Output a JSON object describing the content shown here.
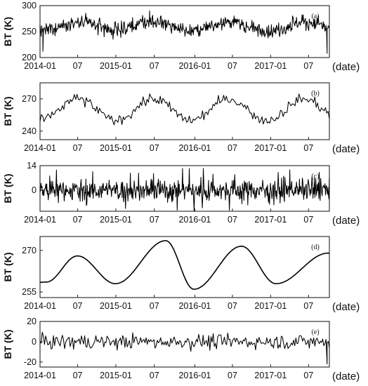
{
  "chart_data": [
    {
      "type": "line",
      "panel_tag": "(a)",
      "ylabel": "BT (K)",
      "xlabel": "(date)",
      "x_ticks": [
        "2014-01",
        "07",
        "2015-01",
        "07",
        "2016-01",
        "07",
        "2017-01",
        "07"
      ],
      "y_ticks": [
        "200",
        "250",
        "300"
      ],
      "ylim": [
        200,
        300
      ],
      "xlim": [
        "2014-01-01",
        "2017-10-31"
      ],
      "series": [
        {
          "daily": true,
          "envelope_top": 275,
          "envelope_bottom": 235,
          "seasonal_peak_months": [
            "2014-07",
            "2015-07",
            "2016-07",
            "2017-07"
          ],
          "extremes": [
            {
              "date": "2014-01-15",
              "value": 212
            },
            {
              "date": "2015-06-15",
              "value": 290
            },
            {
              "date": "2017-10-20",
              "value": 208
            }
          ]
        }
      ]
    },
    {
      "type": "line",
      "panel_tag": "(b)",
      "ylabel": "BT (K)",
      "xlabel": "(date)",
      "x_ticks": [
        "2014-01",
        "07",
        "2015-01",
        "07",
        "2016-01",
        "07",
        "2017-01",
        "07"
      ],
      "y_ticks": [
        "240",
        "270"
      ],
      "ylim": [
        232,
        285
      ],
      "xlim": [
        "2014-01-01",
        "2017-10-31"
      ],
      "series": [
        {
          "weekly_mean": true,
          "range": [
            239,
            280
          ],
          "seasonal_peak_months": [
            "2014-07",
            "2015-07",
            "2016-08",
            "2017-08"
          ],
          "seasonal_trough_months": [
            "2015-01",
            "2016-01",
            "2017-01"
          ]
        }
      ]
    },
    {
      "type": "line",
      "panel_tag": "(c)",
      "ylabel": "BT (K)",
      "xlabel": "(date)",
      "x_ticks": [
        "2014-01",
        "07",
        "2015-01",
        "07",
        "2016-01",
        "07",
        "2017-01",
        "07"
      ],
      "y_ticks": [
        "0",
        "14"
      ],
      "ylim": [
        -12,
        14
      ],
      "xlim": [
        "2014-01-01",
        "2017-10-31"
      ],
      "series": [
        {
          "high_frequency_residual": true,
          "typical_amplitude": 5,
          "max": 14,
          "min": -12
        }
      ]
    },
    {
      "type": "line",
      "panel_tag": "(d)",
      "ylabel": "BT (K)",
      "xlabel": "(date)",
      "x_ticks": [
        "2014-01",
        "07",
        "2015-01",
        "07",
        "2016-01",
        "07",
        "2017-01",
        "07"
      ],
      "y_ticks": [
        "255",
        "270"
      ],
      "ylim": [
        253,
        275
      ],
      "xlim": [
        "2014-01-01",
        "2017-10-31"
      ],
      "series": [
        {
          "seasonal_component": true,
          "points": [
            {
              "date": "2014-01-01",
              "value": 258.5
            },
            {
              "date": "2014-02-01",
              "value": 258.6
            },
            {
              "date": "2014-07-01",
              "value": 268.0
            },
            {
              "date": "2015-01-01",
              "value": 258.0
            },
            {
              "date": "2015-09-01",
              "value": 273.5
            },
            {
              "date": "2016-01-15",
              "value": 256.0
            },
            {
              "date": "2016-09-01",
              "value": 271.5
            },
            {
              "date": "2017-02-15",
              "value": 258.0
            },
            {
              "date": "2017-10-25",
              "value": 269.0
            }
          ]
        }
      ]
    },
    {
      "type": "line",
      "panel_tag": "(e)",
      "ylabel": "BT (K)",
      "xlabel": "(date)",
      "x_ticks": [
        "2014-01",
        "07",
        "2015-01",
        "07",
        "2016-01",
        "07",
        "2017-01",
        "07"
      ],
      "y_ticks": [
        "20",
        "0",
        "-20"
      ],
      "ylim": [
        -25,
        20
      ],
      "xlim": [
        "2014-01-01",
        "2017-10-31"
      ],
      "series": [
        {
          "residual": true,
          "typical_range": [
            -12,
            12
          ],
          "extremes": [
            {
              "date": "2017-10-20",
              "value": -22
            }
          ]
        }
      ]
    }
  ]
}
